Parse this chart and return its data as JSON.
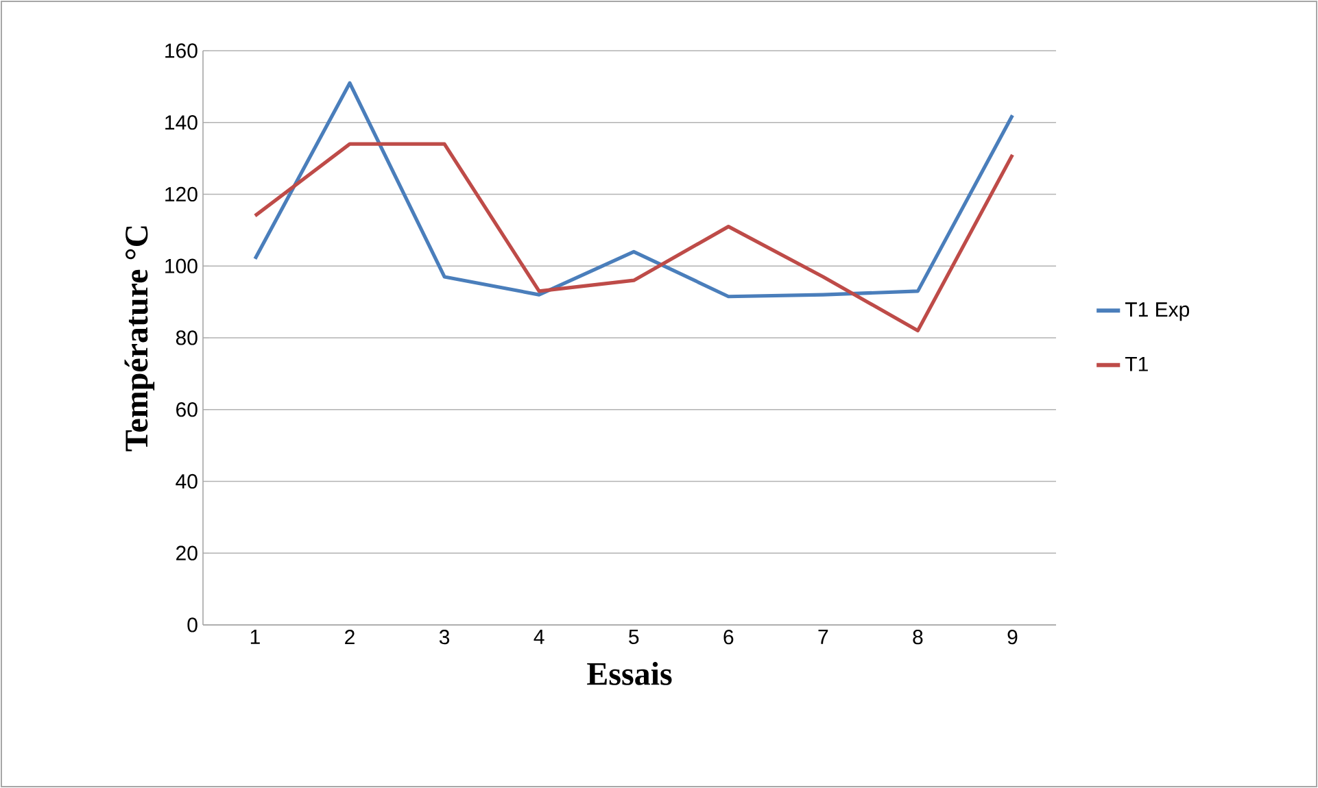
{
  "chart_data": {
    "type": "line",
    "xlabel": "Essais",
    "ylabel": "Température  °C",
    "categories": [
      "1",
      "2",
      "3",
      "4",
      "5",
      "6",
      "7",
      "8",
      "9"
    ],
    "series": [
      {
        "name": "T1 Exp",
        "color": "#4a7ebb",
        "values": [
          102,
          151,
          97,
          92,
          104,
          91.5,
          92,
          93,
          142
        ]
      },
      {
        "name": "T1",
        "color": "#be4b48",
        "values": [
          114,
          134,
          134,
          93,
          96,
          111,
          97,
          82,
          131
        ]
      }
    ],
    "ylim": [
      0,
      160
    ],
    "yticks": [
      0,
      20,
      40,
      60,
      80,
      100,
      120,
      140,
      160
    ],
    "grid": "y",
    "legend": "right",
    "marker": "none",
    "line_style": "solid"
  }
}
